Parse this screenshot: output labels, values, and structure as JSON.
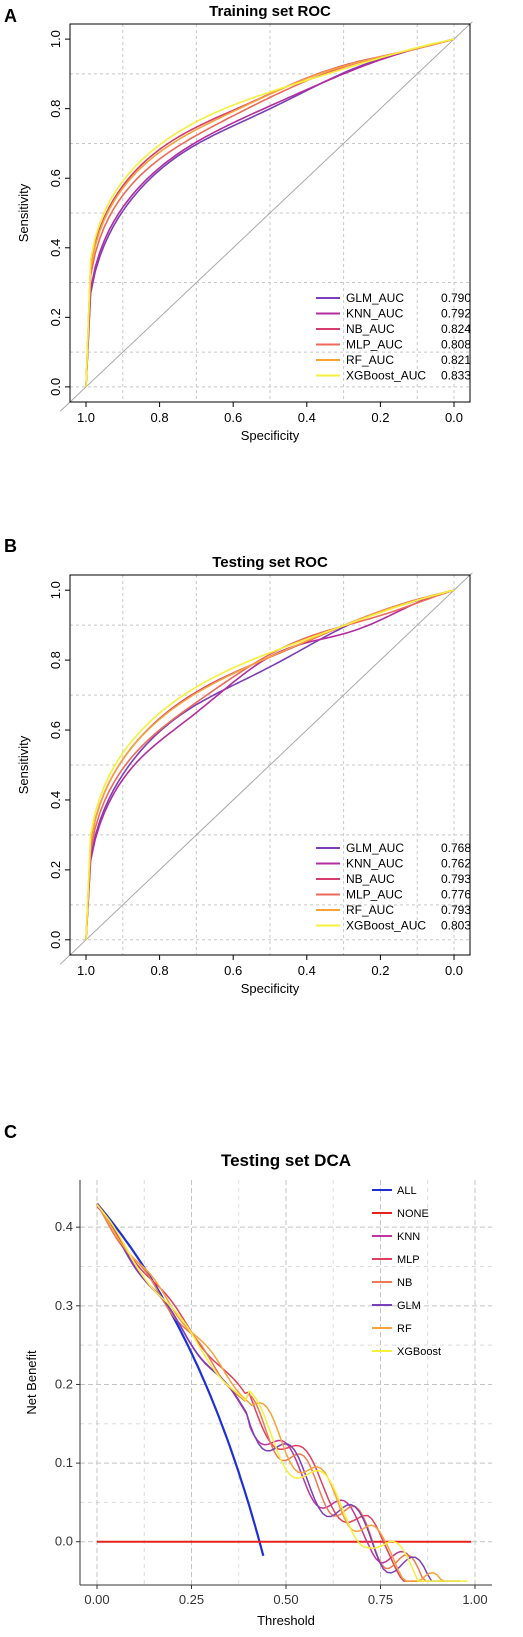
{
  "panel_letters": [
    "A",
    "B",
    "C"
  ],
  "chart_data": [
    {
      "type": "line",
      "title": "Training set ROC",
      "xlabel": "Specificity",
      "ylabel": "Sensitivity",
      "xlim": [
        1.0,
        0.0
      ],
      "ylim": [
        0.0,
        1.0
      ],
      "x_ticks": [
        "1.0",
        "0.8",
        "0.6",
        "0.4",
        "0.2",
        "0.0"
      ],
      "y_ticks": [
        "0.0",
        "0.2",
        "0.4",
        "0.6",
        "0.8",
        "1.0"
      ],
      "grid": true,
      "legend_position": "bottom-right",
      "series": [
        {
          "name": "GLM_AUC",
          "auc": "0.790",
          "color": "#7b3fb8"
        },
        {
          "name": "KNN_AUC",
          "auc": "0.792",
          "color": "#b42d9f"
        },
        {
          "name": "NB_AUC",
          "auc": "0.824",
          "color": "#d63c6b"
        },
        {
          "name": "MLP_AUC",
          "auc": "0.808",
          "color": "#ed6a5a"
        },
        {
          "name": "RF_AUC",
          "auc": "0.821",
          "color": "#f7a33a"
        },
        {
          "name": "XGBoost_AUC",
          "auc": "0.833",
          "color": "#f5f03a"
        }
      ]
    },
    {
      "type": "line",
      "title": "Testing set ROC",
      "xlabel": "Specificity",
      "ylabel": "Sensitivity",
      "xlim": [
        1.0,
        0.0
      ],
      "ylim": [
        0.0,
        1.0
      ],
      "x_ticks": [
        "1.0",
        "0.8",
        "0.6",
        "0.4",
        "0.2",
        "0.0"
      ],
      "y_ticks": [
        "0.0",
        "0.2",
        "0.4",
        "0.6",
        "0.8",
        "1.0"
      ],
      "grid": true,
      "legend_position": "bottom-right",
      "series": [
        {
          "name": "GLM_AUC",
          "auc": "0.768",
          "color": "#7b3fb8"
        },
        {
          "name": "KNN_AUC",
          "auc": "0.762",
          "color": "#b42d9f"
        },
        {
          "name": "NB_AUC",
          "auc": "0.793",
          "color": "#d63c6b"
        },
        {
          "name": "MLP_AUC",
          "auc": "0.776",
          "color": "#ed6a5a"
        },
        {
          "name": "RF_AUC",
          "auc": "0.793",
          "color": "#f7a33a"
        },
        {
          "name": "XGBoost_AUC",
          "auc": "0.803",
          "color": "#f5f03a"
        }
      ]
    },
    {
      "type": "line",
      "title": "Testing set DCA",
      "xlabel": "Threshold",
      "ylabel": "Net Benefit",
      "xlim": [
        0.0,
        1.0
      ],
      "ylim": [
        -0.05,
        0.45
      ],
      "x_ticks": [
        "0.00",
        "0.25",
        "0.50",
        "0.75",
        "1.00"
      ],
      "y_ticks": [
        "0.0",
        "0.1",
        "0.2",
        "0.3",
        "0.4"
      ],
      "grid": true,
      "legend_position": "top-right",
      "series": [
        {
          "name": "ALL",
          "color": "#1f2fd6"
        },
        {
          "name": "NONE",
          "color": "#e8201e"
        },
        {
          "name": "KNN",
          "color": "#c0359f"
        },
        {
          "name": "MLP",
          "color": "#e04060"
        },
        {
          "name": "NB",
          "color": "#ee7a50"
        },
        {
          "name": "GLM",
          "color": "#7b3fb8"
        },
        {
          "name": "RF",
          "color": "#f7a33a"
        },
        {
          "name": "XGBoost",
          "color": "#f5f03a"
        }
      ]
    }
  ]
}
